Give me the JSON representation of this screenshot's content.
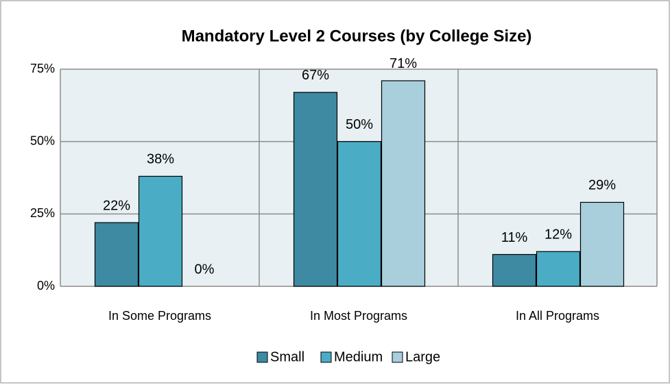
{
  "chart_data": {
    "type": "bar",
    "title": "Mandatory Level 2 Courses (by College Size)",
    "categories": [
      "In Some Programs",
      "In Most Programs",
      "In All Programs"
    ],
    "series": [
      {
        "name": "Small",
        "color": "#3d8aa2",
        "values": [
          22,
          67,
          11
        ],
        "value_labels": [
          "22%",
          "67%",
          "11%"
        ]
      },
      {
        "name": "Medium",
        "color": "#4bacc6",
        "values": [
          38,
          50,
          12
        ],
        "value_labels": [
          "38%",
          "50%",
          "12%"
        ]
      },
      {
        "name": "Large",
        "color": "#a9cfdd",
        "values": [
          0,
          71,
          29
        ],
        "value_labels": [
          "0%",
          "71%",
          "29%"
        ]
      }
    ],
    "ylim": [
      0,
      75
    ],
    "yticks": [
      {
        "value": 0,
        "label": "0%"
      },
      {
        "value": 25,
        "label": "25%"
      },
      {
        "value": 50,
        "label": "50%"
      },
      {
        "value": 75,
        "label": "75%"
      }
    ],
    "grid": true,
    "legend": "bottom"
  }
}
